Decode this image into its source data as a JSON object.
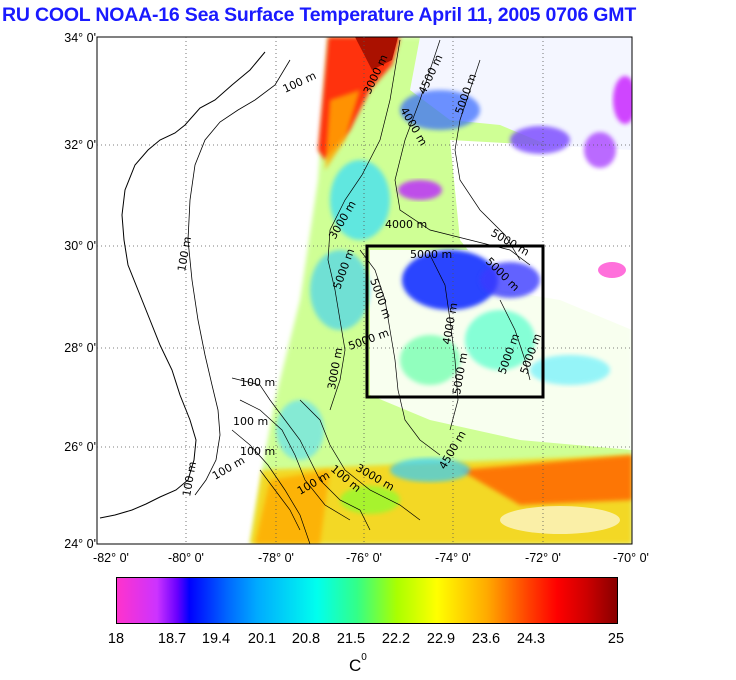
{
  "title": "RU COOL  NOAA-16 Sea Surface Temperature April 11, 2005 0706 GMT",
  "map": {
    "lat_labels": [
      "34° 0'",
      "32° 0'",
      "30° 0'",
      "28° 0'",
      "26° 0'",
      "24° 0'"
    ],
    "lon_labels": [
      "-82° 0'",
      "-80° 0'",
      "-78° 0'",
      "-76° 0'",
      "-74° 0'",
      "-72° 0'",
      "-70° 0'"
    ],
    "lat_range": [
      24,
      34
    ],
    "lon_range": [
      -82,
      -70
    ],
    "grid": "dotted",
    "study_box": {
      "lon": [
        -76,
        -72
      ],
      "lat": [
        27,
        30
      ]
    },
    "contour_labels": [
      "100 m",
      "100 m",
      "100 m",
      "100 m",
      "100 m",
      "100 m",
      "100 m",
      "100 m",
      "100 m",
      "3000 m",
      "4000 m",
      "4500 m",
      "5000 m",
      "4000 m",
      "3000 m",
      "5000 m",
      "5000 m",
      "5000 m",
      "5000 m",
      "5000 m",
      "5000 m",
      "4000 m",
      "5000 m",
      "3000 m",
      "3000 m",
      "5000 m",
      "5000 m",
      "4500 m"
    ],
    "land_color": "#ffffff",
    "coast_color": "#000000"
  },
  "colorbar": {
    "ticks": [
      "18",
      "18.7",
      "19.4",
      "20.1",
      "20.8",
      "21.5",
      "22.2",
      "22.9",
      "23.6",
      "24.3",
      "25"
    ],
    "unit": "C",
    "unit_sup": "0",
    "min": 18,
    "max": 25
  }
}
